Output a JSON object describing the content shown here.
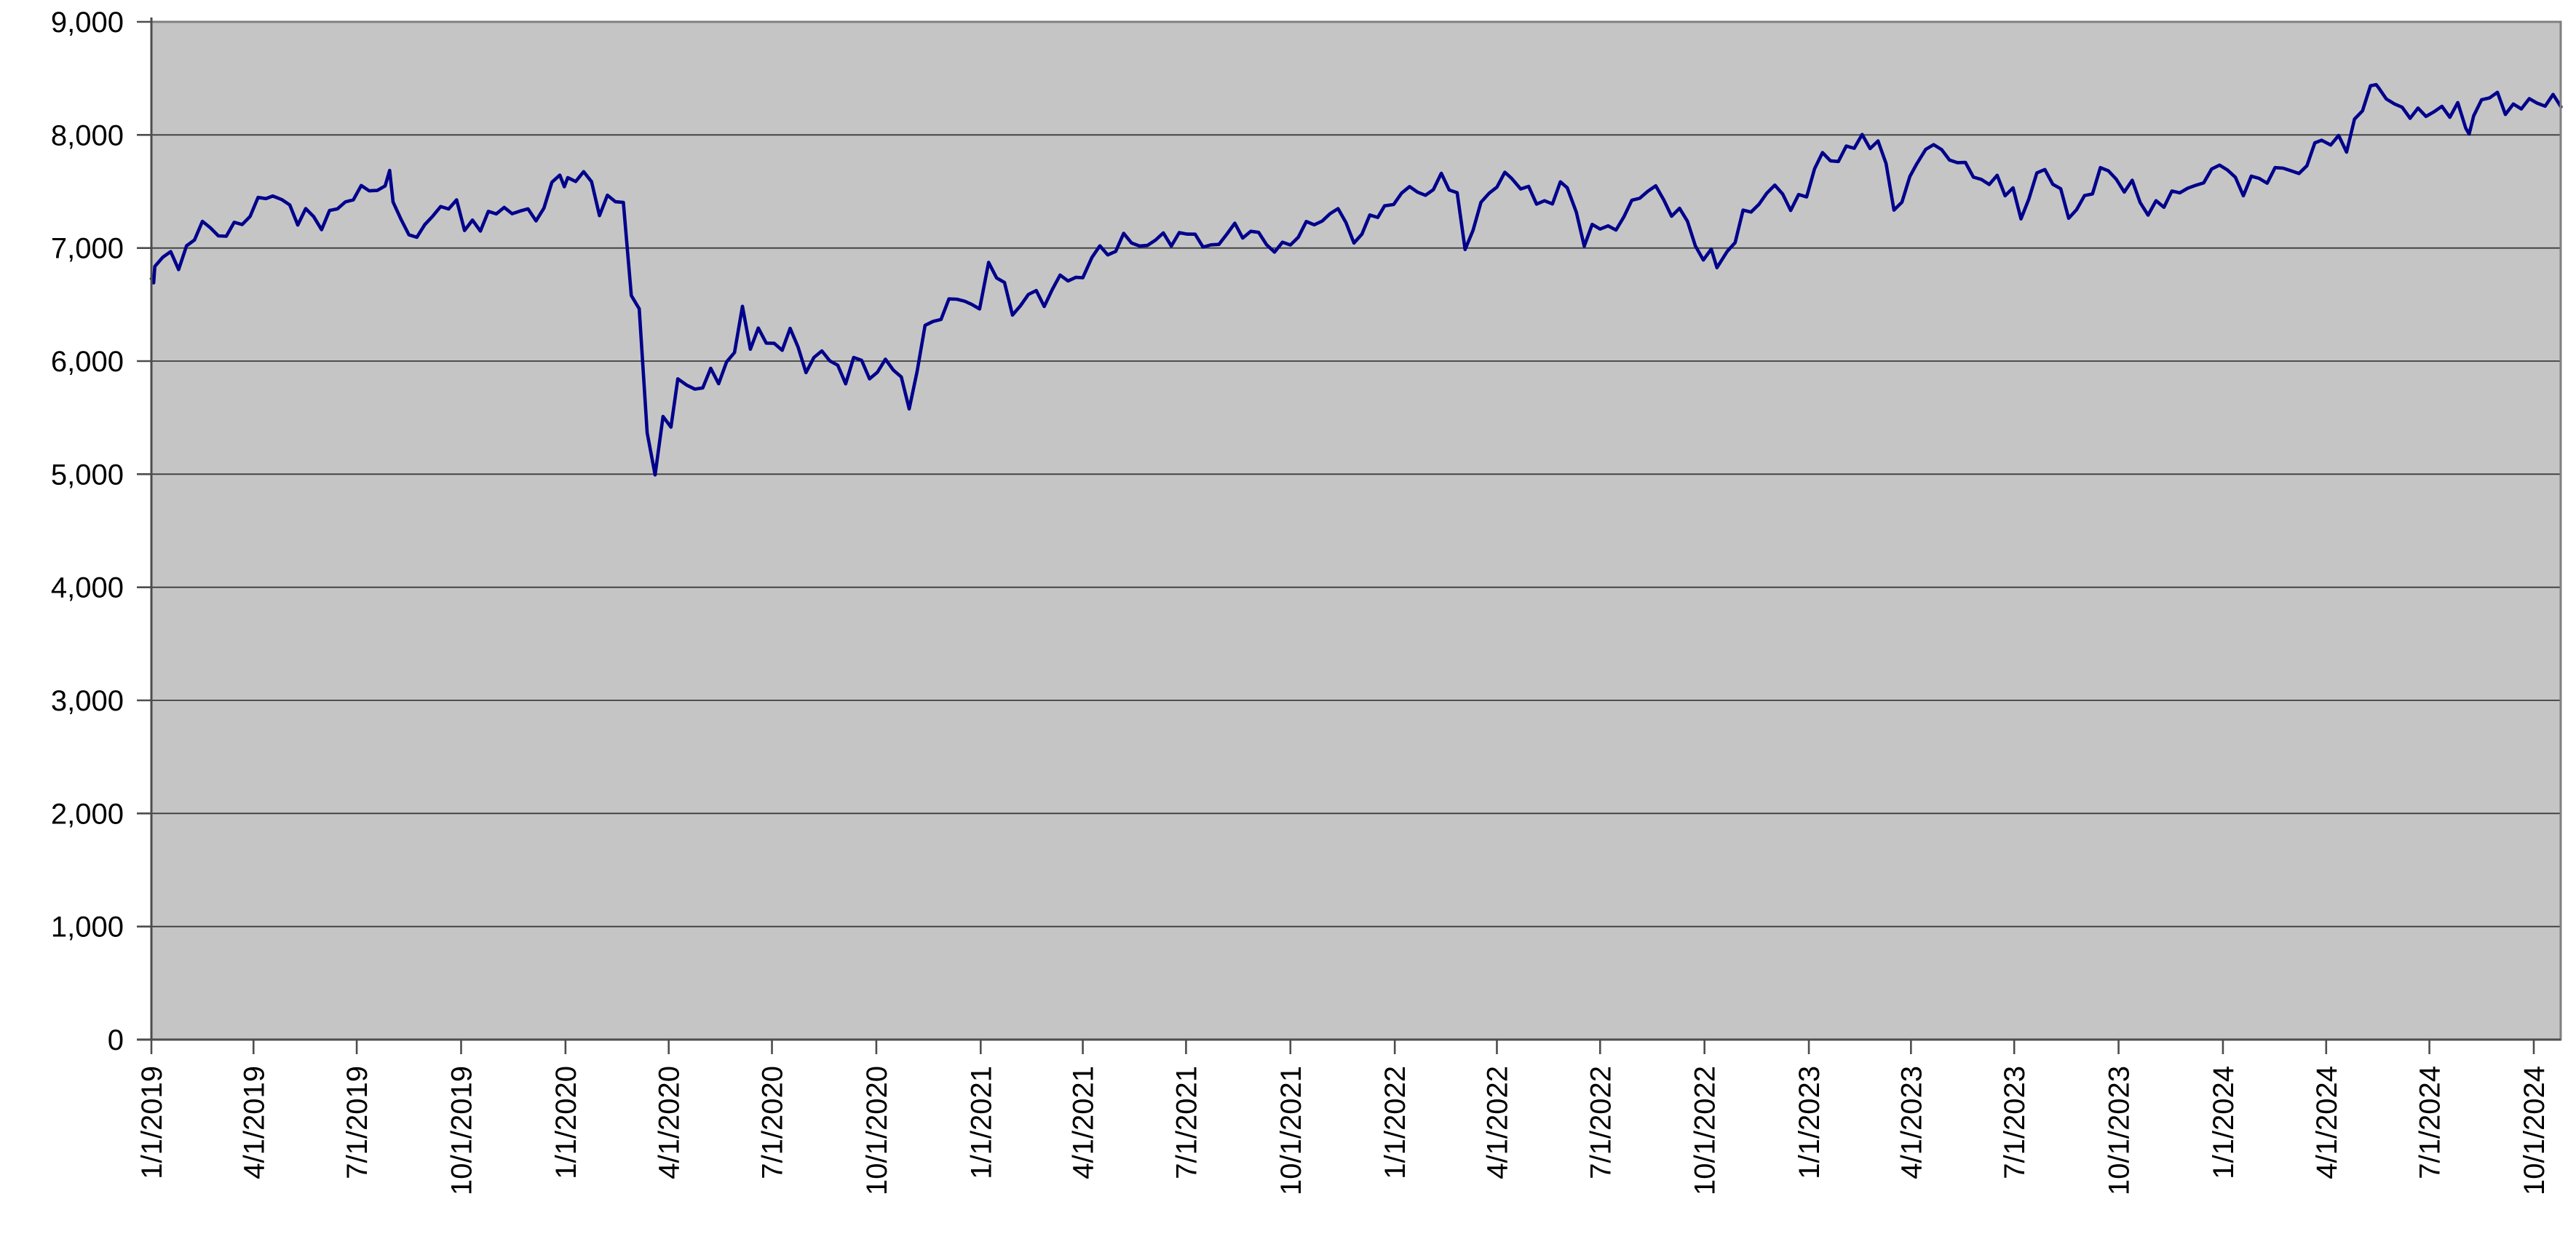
{
  "chart_data": {
    "type": "line",
    "title": "",
    "legend": false,
    "grid": true,
    "colors": {
      "line": "#00008B",
      "plot_background": "#C5C5C6",
      "gridline": "#3C3C3C",
      "axis": "#4D4D4D",
      "plot_border": "#808080",
      "label_text": "#000000"
    },
    "y_axis": {
      "min": 0,
      "max": 9000,
      "step": 1000,
      "tick_labels": [
        "0",
        "1,000",
        "2,000",
        "3,000",
        "4,000",
        "5,000",
        "6,000",
        "7,000",
        "8,000",
        "9,000"
      ]
    },
    "x_axis": {
      "tick_labels": [
        "1/1/2019",
        "4/1/2019",
        "7/1/2019",
        "10/1/2019",
        "1/1/2020",
        "4/1/2020",
        "7/1/2020",
        "10/1/2020",
        "1/1/2021",
        "4/1/2021",
        "7/1/2021",
        "10/1/2021",
        "1/1/2022",
        "4/1/2022",
        "7/1/2022",
        "10/1/2022",
        "1/1/2023",
        "4/1/2023",
        "7/1/2023",
        "10/1/2023",
        "1/1/2024",
        "4/1/2024",
        "7/1/2024",
        "10/1/2024"
      ]
    },
    "points": [
      [
        "2019-01-01",
        6728
      ],
      [
        "2019-01-02",
        6734
      ],
      [
        "2019-01-03",
        6692
      ],
      [
        "2019-01-04",
        6837
      ],
      [
        "2019-01-11",
        6918
      ],
      [
        "2019-01-18",
        6968
      ],
      [
        "2019-01-25",
        6809
      ],
      [
        "2019-02-01",
        7020
      ],
      [
        "2019-02-08",
        7071
      ],
      [
        "2019-02-15",
        7236
      ],
      [
        "2019-02-22",
        7179
      ],
      [
        "2019-03-01",
        7107
      ],
      [
        "2019-03-08",
        7104
      ],
      [
        "2019-03-15",
        7228
      ],
      [
        "2019-03-22",
        7208
      ],
      [
        "2019-03-29",
        7279
      ],
      [
        "2019-04-05",
        7447
      ],
      [
        "2019-04-12",
        7437
      ],
      [
        "2019-04-18",
        7460
      ],
      [
        "2019-04-26",
        7428
      ],
      [
        "2019-05-03",
        7381
      ],
      [
        "2019-05-10",
        7203
      ],
      [
        "2019-05-17",
        7349
      ],
      [
        "2019-05-24",
        7278
      ],
      [
        "2019-05-31",
        7162
      ],
      [
        "2019-06-07",
        7332
      ],
      [
        "2019-06-14",
        7346
      ],
      [
        "2019-06-21",
        7408
      ],
      [
        "2019-06-28",
        7426
      ],
      [
        "2019-07-05",
        7553
      ],
      [
        "2019-07-12",
        7506
      ],
      [
        "2019-07-19",
        7509
      ],
      [
        "2019-07-26",
        7549
      ],
      [
        "2019-07-30",
        7686
      ],
      [
        "2019-08-02",
        7407
      ],
      [
        "2019-08-09",
        7254
      ],
      [
        "2019-08-16",
        7117
      ],
      [
        "2019-08-23",
        7095
      ],
      [
        "2019-08-30",
        7207
      ],
      [
        "2019-09-06",
        7282
      ],
      [
        "2019-09-13",
        7367
      ],
      [
        "2019-09-20",
        7345
      ],
      [
        "2019-09-27",
        7426
      ],
      [
        "2019-10-04",
        7155
      ],
      [
        "2019-10-11",
        7247
      ],
      [
        "2019-10-18",
        7150
      ],
      [
        "2019-10-25",
        7324
      ],
      [
        "2019-11-01",
        7302
      ],
      [
        "2019-11-08",
        7359
      ],
      [
        "2019-11-15",
        7303
      ],
      [
        "2019-11-22",
        7327
      ],
      [
        "2019-11-29",
        7346
      ],
      [
        "2019-12-06",
        7240
      ],
      [
        "2019-12-13",
        7353
      ],
      [
        "2019-12-20",
        7582
      ],
      [
        "2019-12-27",
        7645
      ],
      [
        "2019-12-31",
        7542
      ],
      [
        "2020-01-03",
        7622
      ],
      [
        "2020-01-10",
        7588
      ],
      [
        "2020-01-17",
        7675
      ],
      [
        "2020-01-24",
        7586
      ],
      [
        "2020-01-31",
        7286
      ],
      [
        "2020-02-07",
        7467
      ],
      [
        "2020-02-14",
        7409
      ],
      [
        "2020-02-21",
        7403
      ],
      [
        "2020-02-28",
        6580
      ],
      [
        "2020-03-06",
        6462
      ],
      [
        "2020-03-13",
        5366
      ],
      [
        "2020-03-20",
        4994
      ],
      [
        "2020-03-27",
        5510
      ],
      [
        "2020-04-03",
        5416
      ],
      [
        "2020-04-09",
        5843
      ],
      [
        "2020-04-17",
        5787
      ],
      [
        "2020-04-24",
        5752
      ],
      [
        "2020-05-01",
        5763
      ],
      [
        "2020-05-08",
        5936
      ],
      [
        "2020-05-15",
        5800
      ],
      [
        "2020-05-22",
        5993
      ],
      [
        "2020-05-29",
        6076
      ],
      [
        "2020-06-05",
        6484
      ],
      [
        "2020-06-12",
        6105
      ],
      [
        "2020-06-19",
        6292
      ],
      [
        "2020-06-26",
        6159
      ],
      [
        "2020-07-03",
        6157
      ],
      [
        "2020-07-10",
        6095
      ],
      [
        "2020-07-17",
        6290
      ],
      [
        "2020-07-24",
        6124
      ],
      [
        "2020-07-31",
        5898
      ],
      [
        "2020-08-07",
        6032
      ],
      [
        "2020-08-14",
        6090
      ],
      [
        "2020-08-21",
        6002
      ],
      [
        "2020-08-28",
        5964
      ],
      [
        "2020-09-04",
        5799
      ],
      [
        "2020-09-11",
        6032
      ],
      [
        "2020-09-18",
        6007
      ],
      [
        "2020-09-25",
        5843
      ],
      [
        "2020-10-02",
        5902
      ],
      [
        "2020-10-09",
        6017
      ],
      [
        "2020-10-16",
        5920
      ],
      [
        "2020-10-23",
        5860
      ],
      [
        "2020-10-30",
        5577
      ],
      [
        "2020-11-06",
        5910
      ],
      [
        "2020-11-13",
        6316
      ],
      [
        "2020-11-20",
        6351
      ],
      [
        "2020-11-27",
        6368
      ],
      [
        "2020-12-04",
        6550
      ],
      [
        "2020-12-11",
        6547
      ],
      [
        "2020-12-18",
        6529
      ],
      [
        "2020-12-24",
        6502
      ],
      [
        "2020-12-31",
        6461
      ],
      [
        "2021-01-08",
        6873
      ],
      [
        "2021-01-15",
        6736
      ],
      [
        "2021-01-22",
        6695
      ],
      [
        "2021-01-29",
        6407
      ],
      [
        "2021-02-05",
        6489
      ],
      [
        "2021-02-12",
        6589
      ],
      [
        "2021-02-19",
        6624
      ],
      [
        "2021-02-26",
        6483
      ],
      [
        "2021-03-05",
        6631
      ],
      [
        "2021-03-12",
        6761
      ],
      [
        "2021-03-19",
        6709
      ],
      [
        "2021-03-26",
        6741
      ],
      [
        "2021-04-01",
        6737
      ],
      [
        "2021-04-09",
        6916
      ],
      [
        "2021-04-16",
        7019
      ],
      [
        "2021-04-23",
        6939
      ],
      [
        "2021-04-30",
        6970
      ],
      [
        "2021-05-07",
        7130
      ],
      [
        "2021-05-14",
        7044
      ],
      [
        "2021-05-21",
        7018
      ],
      [
        "2021-05-28",
        7023
      ],
      [
        "2021-06-04",
        7069
      ],
      [
        "2021-06-11",
        7134
      ],
      [
        "2021-06-18",
        7017
      ],
      [
        "2021-06-25",
        7136
      ],
      [
        "2021-07-02",
        7123
      ],
      [
        "2021-07-09",
        7122
      ],
      [
        "2021-07-16",
        7008
      ],
      [
        "2021-07-23",
        7028
      ],
      [
        "2021-07-30",
        7032
      ],
      [
        "2021-08-06",
        7123
      ],
      [
        "2021-08-13",
        7219
      ],
      [
        "2021-08-20",
        7088
      ],
      [
        "2021-08-27",
        7148
      ],
      [
        "2021-09-03",
        7138
      ],
      [
        "2021-09-10",
        7029
      ],
      [
        "2021-09-17",
        6964
      ],
      [
        "2021-09-24",
        7051
      ],
      [
        "2021-10-01",
        7027
      ],
      [
        "2021-10-08",
        7096
      ],
      [
        "2021-10-15",
        7234
      ],
      [
        "2021-10-22",
        7205
      ],
      [
        "2021-10-29",
        7238
      ],
      [
        "2021-11-05",
        7304
      ],
      [
        "2021-11-12",
        7348
      ],
      [
        "2021-11-19",
        7224
      ],
      [
        "2021-11-26",
        7044
      ],
      [
        "2021-12-03",
        7122
      ],
      [
        "2021-12-10",
        7292
      ],
      [
        "2021-12-17",
        7270
      ],
      [
        "2021-12-23",
        7373
      ],
      [
        "2021-12-31",
        7385
      ],
      [
        "2022-01-07",
        7485
      ],
      [
        "2022-01-14",
        7543
      ],
      [
        "2022-01-21",
        7494
      ],
      [
        "2022-01-28",
        7466
      ],
      [
        "2022-02-04",
        7516
      ],
      [
        "2022-02-11",
        7661
      ],
      [
        "2022-02-18",
        7513
      ],
      [
        "2022-02-25",
        7489
      ],
      [
        "2022-03-04",
        6987
      ],
      [
        "2022-03-11",
        7156
      ],
      [
        "2022-03-18",
        7404
      ],
      [
        "2022-03-25",
        7483
      ],
      [
        "2022-04-01",
        7538
      ],
      [
        "2022-04-08",
        7670
      ],
      [
        "2022-04-14",
        7616
      ],
      [
        "2022-04-22",
        7522
      ],
      [
        "2022-04-29",
        7545
      ],
      [
        "2022-05-06",
        7388
      ],
      [
        "2022-05-13",
        7418
      ],
      [
        "2022-05-20",
        7390
      ],
      [
        "2022-05-27",
        7585
      ],
      [
        "2022-06-02",
        7533
      ],
      [
        "2022-06-10",
        7317
      ],
      [
        "2022-06-17",
        7016
      ],
      [
        "2022-06-24",
        7209
      ],
      [
        "2022-07-01",
        7168
      ],
      [
        "2022-07-08",
        7196
      ],
      [
        "2022-07-15",
        7159
      ],
      [
        "2022-07-22",
        7276
      ],
      [
        "2022-07-29",
        7423
      ],
      [
        "2022-08-05",
        7440
      ],
      [
        "2022-08-12",
        7501
      ],
      [
        "2022-08-19",
        7550
      ],
      [
        "2022-08-26",
        7427
      ],
      [
        "2022-09-02",
        7281
      ],
      [
        "2022-09-09",
        7351
      ],
      [
        "2022-09-16",
        7237
      ],
      [
        "2022-09-23",
        7018
      ],
      [
        "2022-09-30",
        6894
      ],
      [
        "2022-10-07",
        6991
      ],
      [
        "2022-10-12",
        6826
      ],
      [
        "2022-10-21",
        6970
      ],
      [
        "2022-10-28",
        7048
      ],
      [
        "2022-11-04",
        7335
      ],
      [
        "2022-11-11",
        7318
      ],
      [
        "2022-11-18",
        7386
      ],
      [
        "2022-11-25",
        7486
      ],
      [
        "2022-12-02",
        7556
      ],
      [
        "2022-12-09",
        7476
      ],
      [
        "2022-12-16",
        7332
      ],
      [
        "2022-12-23",
        7473
      ],
      [
        "2022-12-30",
        7452
      ],
      [
        "2023-01-06",
        7700
      ],
      [
        "2023-01-13",
        7844
      ],
      [
        "2023-01-20",
        7771
      ],
      [
        "2023-01-27",
        7765
      ],
      [
        "2023-02-03",
        7902
      ],
      [
        "2023-02-10",
        7882
      ],
      [
        "2023-02-17",
        8004
      ],
      [
        "2023-02-24",
        7879
      ],
      [
        "2023-03-03",
        7947
      ],
      [
        "2023-03-10",
        7748
      ],
      [
        "2023-03-17",
        7335
      ],
      [
        "2023-03-24",
        7405
      ],
      [
        "2023-03-31",
        7632
      ],
      [
        "2023-04-06",
        7742
      ],
      [
        "2023-04-14",
        7872
      ],
      [
        "2023-04-21",
        7914
      ],
      [
        "2023-04-28",
        7871
      ],
      [
        "2023-05-05",
        7778
      ],
      [
        "2023-05-12",
        7755
      ],
      [
        "2023-05-19",
        7757
      ],
      [
        "2023-05-26",
        7627
      ],
      [
        "2023-06-02",
        7607
      ],
      [
        "2023-06-09",
        7562
      ],
      [
        "2023-06-16",
        7643
      ],
      [
        "2023-06-23",
        7462
      ],
      [
        "2023-06-30",
        7532
      ],
      [
        "2023-07-07",
        7257
      ],
      [
        "2023-07-14",
        7435
      ],
      [
        "2023-07-21",
        7664
      ],
      [
        "2023-07-28",
        7694
      ],
      [
        "2023-08-04",
        7564
      ],
      [
        "2023-08-11",
        7524
      ],
      [
        "2023-08-18",
        7263
      ],
      [
        "2023-08-25",
        7339
      ],
      [
        "2023-09-01",
        7464
      ],
      [
        "2023-09-08",
        7478
      ],
      [
        "2023-09-15",
        7711
      ],
      [
        "2023-09-22",
        7683
      ],
      [
        "2023-09-29",
        7608
      ],
      [
        "2023-10-06",
        7495
      ],
      [
        "2023-10-13",
        7599
      ],
      [
        "2023-10-20",
        7402
      ],
      [
        "2023-10-27",
        7291
      ],
      [
        "2023-11-03",
        7418
      ],
      [
        "2023-11-10",
        7360
      ],
      [
        "2023-11-17",
        7504
      ],
      [
        "2023-11-24",
        7488
      ],
      [
        "2023-12-01",
        7529
      ],
      [
        "2023-12-08",
        7554
      ],
      [
        "2023-12-15",
        7576
      ],
      [
        "2023-12-22",
        7698
      ],
      [
        "2023-12-29",
        7733
      ],
      [
        "2024-01-05",
        7689
      ],
      [
        "2024-01-12",
        7625
      ],
      [
        "2024-01-19",
        7462
      ],
      [
        "2024-01-26",
        7635
      ],
      [
        "2024-02-02",
        7615
      ],
      [
        "2024-02-09",
        7573
      ],
      [
        "2024-02-16",
        7711
      ],
      [
        "2024-02-23",
        7706
      ],
      [
        "2024-03-01",
        7683
      ],
      [
        "2024-03-08",
        7659
      ],
      [
        "2024-03-15",
        7727
      ],
      [
        "2024-03-22",
        7930
      ],
      [
        "2024-03-28",
        7953
      ],
      [
        "2024-04-05",
        7911
      ],
      [
        "2024-04-12",
        7996
      ],
      [
        "2024-04-19",
        7848
      ],
      [
        "2024-04-26",
        8140
      ],
      [
        "2024-05-03",
        8213
      ],
      [
        "2024-05-10",
        8434
      ],
      [
        "2024-05-15",
        8445
      ],
      [
        "2024-05-17",
        8420
      ],
      [
        "2024-05-24",
        8318
      ],
      [
        "2024-05-31",
        8275
      ],
      [
        "2024-06-07",
        8245
      ],
      [
        "2024-06-14",
        8147
      ],
      [
        "2024-06-21",
        8238
      ],
      [
        "2024-06-28",
        8164
      ],
      [
        "2024-07-05",
        8204
      ],
      [
        "2024-07-12",
        8253
      ],
      [
        "2024-07-19",
        8156
      ],
      [
        "2024-07-26",
        8286
      ],
      [
        "2024-08-02",
        8060
      ],
      [
        "2024-08-05",
        8008
      ],
      [
        "2024-08-09",
        8168
      ],
      [
        "2024-08-16",
        8311
      ],
      [
        "2024-08-23",
        8327
      ],
      [
        "2024-08-30",
        8377
      ],
      [
        "2024-09-06",
        8181
      ],
      [
        "2024-09-13",
        8273
      ],
      [
        "2024-09-20",
        8230
      ],
      [
        "2024-09-27",
        8321
      ],
      [
        "2024-10-04",
        8281
      ],
      [
        "2024-10-11",
        8254
      ],
      [
        "2024-10-18",
        8358
      ],
      [
        "2024-10-25",
        8248
      ]
    ]
  }
}
